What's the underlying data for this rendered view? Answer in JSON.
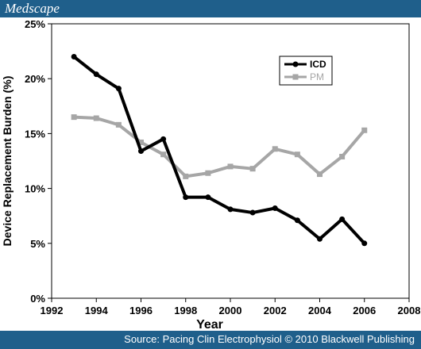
{
  "header": {
    "brand": "Medscape"
  },
  "footer": {
    "source": "Source: Pacing Clin Electrophysiol © 2010 Blackwell Publishing"
  },
  "chart_data": {
    "type": "line",
    "xlabel": "Year",
    "ylabel": "Device Replacement Burden (%)",
    "xlim": [
      1992,
      2008
    ],
    "ylim": [
      0,
      25
    ],
    "xticks": [
      "1992",
      "1994",
      "1996",
      "1998",
      "2000",
      "2002",
      "2004",
      "2006",
      "2008"
    ],
    "yticks": [
      "0%",
      "5%",
      "10%",
      "15%",
      "20%",
      "25%"
    ],
    "legend_position": "top-right",
    "series": [
      {
        "name": "ICD",
        "color": "#000000",
        "marker": "circle",
        "x": [
          1993,
          1994,
          1995,
          1996,
          1997,
          1998,
          1999,
          2000,
          2001,
          2002,
          2003,
          2004,
          2005,
          2006
        ],
        "values": [
          22.0,
          20.4,
          19.1,
          13.4,
          14.5,
          9.2,
          9.2,
          8.1,
          7.8,
          8.2,
          7.1,
          5.4,
          7.2,
          5.0
        ]
      },
      {
        "name": "PM",
        "color": "#a6a6a6",
        "marker": "square",
        "x": [
          1993,
          1994,
          1995,
          1996,
          1997,
          1998,
          1999,
          2000,
          2001,
          2002,
          2003,
          2004,
          2005,
          2006
        ],
        "values": [
          16.5,
          16.4,
          15.8,
          14.2,
          13.1,
          11.1,
          11.4,
          12.0,
          11.8,
          13.6,
          13.1,
          11.3,
          12.9,
          15.3
        ]
      }
    ]
  }
}
